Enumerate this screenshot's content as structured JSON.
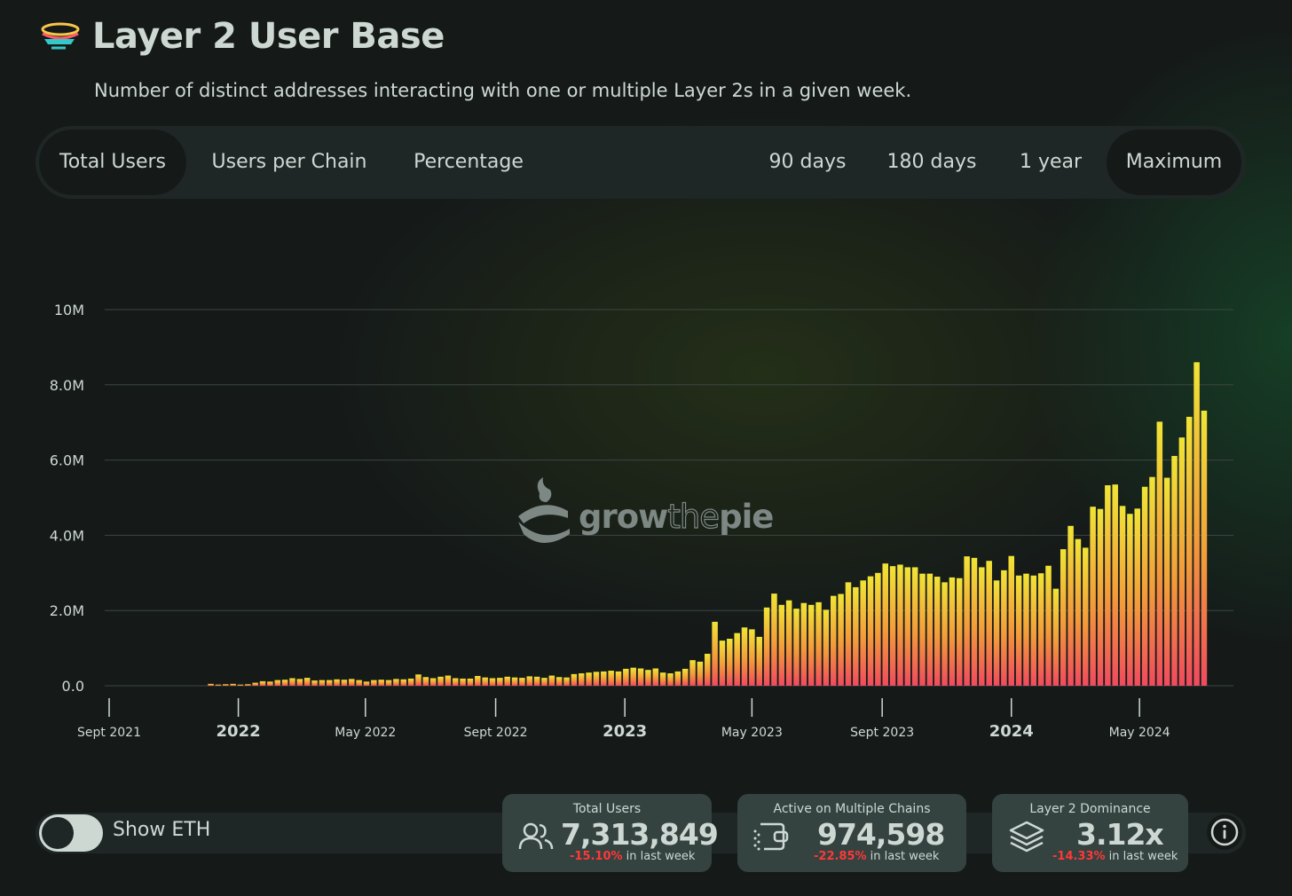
{
  "header": {
    "title": "Layer 2 User Base",
    "subtitle": "Number of distinct addresses interacting with one or multiple Layer 2s in a given week."
  },
  "tabs_left": [
    {
      "label": "Total Users",
      "active": true
    },
    {
      "label": "Users per Chain",
      "active": false
    },
    {
      "label": "Percentage",
      "active": false
    }
  ],
  "tabs_right": [
    {
      "label": "90 days",
      "active": false
    },
    {
      "label": "180 days",
      "active": false
    },
    {
      "label": "1 year",
      "active": false
    },
    {
      "label": "Maximum",
      "active": true
    }
  ],
  "watermark": {
    "part1": "grow",
    "part2": "the",
    "part3": "pie"
  },
  "toggle": {
    "label": "Show ETH",
    "on": false
  },
  "kpis": [
    {
      "title": "Total Users",
      "value": "7,313,849",
      "change": "-15.10%",
      "suffix": " in last week",
      "icon": "users-icon"
    },
    {
      "title": "Active on Multiple Chains",
      "value": "974,598",
      "change": "-22.85%",
      "suffix": " in last week",
      "icon": "wallet-icon"
    },
    {
      "title": "Layer 2 Dominance",
      "value": "3.12x",
      "change": "-14.33%",
      "suffix": " in last week",
      "icon": "layers-icon"
    }
  ],
  "colors": {
    "bar_top": "#f1e436",
    "bar_mid": "#f39a3a",
    "bar_bottom": "#f04a5e",
    "negative": "#ff3838"
  },
  "chart_data": {
    "type": "bar",
    "title": "",
    "xlabel": "",
    "ylabel": "",
    "ylim": [
      0,
      10000000
    ],
    "y_ticks": [
      {
        "value": 0,
        "label": "0.0"
      },
      {
        "value": 2000000,
        "label": "2.0M"
      },
      {
        "value": 4000000,
        "label": "4.0M"
      },
      {
        "value": 6000000,
        "label": "6.0M"
      },
      {
        "value": 8000000,
        "label": "8.0M"
      },
      {
        "value": 10000000,
        "label": "10M"
      }
    ],
    "x_range": [
      "2021-09-01",
      "2024-07-22"
    ],
    "x_ticks": [
      {
        "date": "2021-09-01",
        "label": "Sept 2021",
        "bold": false
      },
      {
        "date": "2022-01-01",
        "label": "2022",
        "bold": true
      },
      {
        "date": "2022-05-01",
        "label": "May 2022",
        "bold": false
      },
      {
        "date": "2022-09-01",
        "label": "Sept 2022",
        "bold": false
      },
      {
        "date": "2023-01-01",
        "label": "2023",
        "bold": true
      },
      {
        "date": "2023-05-01",
        "label": "May 2023",
        "bold": false
      },
      {
        "date": "2023-09-01",
        "label": "Sept 2023",
        "bold": false
      },
      {
        "date": "2024-01-01",
        "label": "2024",
        "bold": true
      },
      {
        "date": "2024-05-01",
        "label": "May 2024",
        "bold": false
      }
    ],
    "series": [
      {
        "first_week": "2021-09-06",
        "interval_days": 7,
        "values": [
          0,
          0,
          0,
          0,
          0,
          0,
          0,
          0,
          0,
          0,
          0,
          0,
          0,
          50000,
          30000,
          40000,
          50000,
          30000,
          40000,
          80000,
          120000,
          110000,
          150000,
          160000,
          200000,
          180000,
          210000,
          140000,
          150000,
          150000,
          170000,
          160000,
          180000,
          150000,
          110000,
          150000,
          160000,
          150000,
          180000,
          170000,
          190000,
          300000,
          230000,
          200000,
          240000,
          270000,
          200000,
          190000,
          190000,
          260000,
          220000,
          200000,
          210000,
          240000,
          220000,
          210000,
          250000,
          240000,
          210000,
          270000,
          230000,
          220000,
          310000,
          330000,
          350000,
          370000,
          380000,
          400000,
          380000,
          450000,
          480000,
          460000,
          420000,
          460000,
          350000,
          330000,
          380000,
          450000,
          680000,
          640000,
          850000,
          1700000,
          1200000,
          1250000,
          1400000,
          1550000,
          1500000,
          1300000,
          2080000,
          2450000,
          2150000,
          2270000,
          2050000,
          2200000,
          2150000,
          2220000,
          2020000,
          2390000,
          2440000,
          2750000,
          2620000,
          2800000,
          2910000,
          3000000,
          3250000,
          3180000,
          3220000,
          3150000,
          3150000,
          2980000,
          2980000,
          2900000,
          2750000,
          2880000,
          2860000,
          3440000,
          3400000,
          3150000,
          3320000,
          2800000,
          3070000,
          3450000,
          2930000,
          2980000,
          2930000,
          2990000,
          3190000,
          2580000,
          3630000,
          4250000,
          3900000,
          3670000,
          4760000,
          4700000,
          5330000,
          5350000,
          4780000,
          4570000,
          4710000,
          5290000,
          5550000,
          7020000,
          5530000,
          6110000,
          6600000,
          7150000,
          8600000,
          7313849
        ]
      }
    ]
  }
}
